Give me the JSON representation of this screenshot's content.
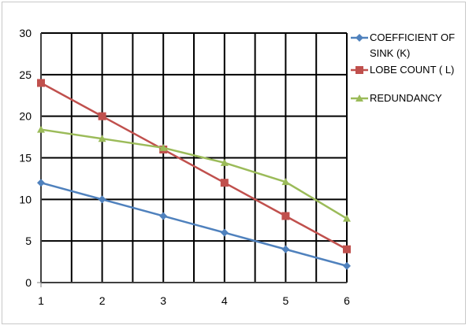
{
  "chart_data": {
    "type": "line",
    "title": "",
    "xlabel": "",
    "ylabel": "",
    "x": [
      1,
      2,
      3,
      4,
      5,
      6
    ],
    "x_tick_labels": [
      "1",
      "2",
      "3",
      "4",
      "5",
      "6"
    ],
    "y_tick_labels": [
      "0",
      "5",
      "10",
      "15",
      "20",
      "25",
      "30"
    ],
    "ylim": [
      0,
      30
    ],
    "xlim": [
      1,
      6
    ],
    "grid": true,
    "legend_position": "right",
    "series": [
      {
        "name": "COEFFICIENT OF SINK  (K)",
        "legend_lines": [
          "COEFFICIENT OF",
          "SINK  (K)"
        ],
        "values": [
          12,
          10,
          8,
          6,
          4,
          2
        ],
        "color": "#4f81bd",
        "marker": "diamond"
      },
      {
        "name": "LOBE COUNT ( L)",
        "legend_lines": [
          "LOBE COUNT ( L)"
        ],
        "values": [
          24,
          20,
          16,
          12,
          8,
          4
        ],
        "color": "#c0504d",
        "marker": "square"
      },
      {
        "name": "REDUNDANCY",
        "legend_lines": [
          "REDUNDANCY"
        ],
        "values": [
          18.4,
          17.3,
          16.2,
          14.4,
          12.1,
          7.7
        ],
        "color": "#9bbb59",
        "marker": "triangle"
      }
    ]
  }
}
